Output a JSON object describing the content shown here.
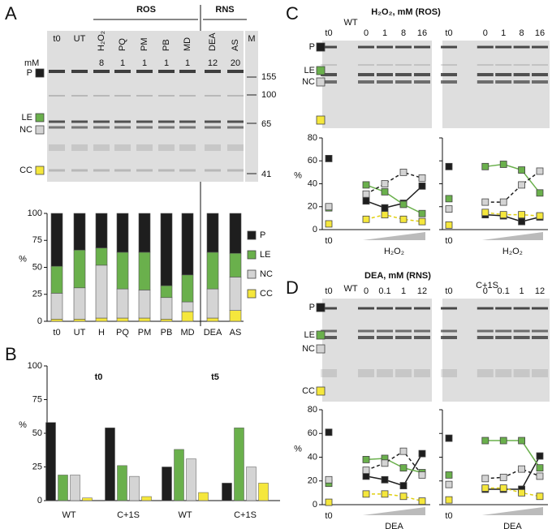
{
  "panels": [
    "A",
    "B",
    "C",
    "D"
  ],
  "gel_a": {
    "groups": [
      "ROS",
      "RNS"
    ],
    "lanes": [
      "t0",
      "UT",
      "H₂O₂",
      "PQ",
      "PM",
      "PB",
      "MD",
      "DEA",
      "AS",
      "M"
    ],
    "unit": "mM",
    "doses": [
      8,
      1,
      1,
      1,
      1,
      12,
      20
    ],
    "markers": [
      155,
      100,
      65,
      41
    ]
  },
  "chart_data": [
    {
      "type": "stacked_bar",
      "categories": [
        "t0",
        "UT",
        "H",
        "PQ",
        "PM",
        "PB",
        "MD",
        "DEA",
        "AS"
      ],
      "y_label": "%",
      "ylim": [
        0,
        100
      ],
      "yticks": [
        0,
        25,
        50,
        75,
        100
      ],
      "legend": "right",
      "series": [
        {
          "name": "P",
          "color": "#1e1e1e",
          "values": [
            49,
            34,
            32,
            36,
            36,
            67,
            57,
            36,
            37
          ]
        },
        {
          "name": "LE",
          "color": "#6ab04c",
          "values": [
            25,
            35,
            16,
            34,
            35,
            11,
            25,
            34,
            22
          ]
        },
        {
          "name": "NC",
          "color": "#d4d4d4",
          "values": [
            24,
            29,
            49,
            27,
            26,
            20,
            9,
            27,
            31
          ]
        },
        {
          "name": "CC",
          "color": "#f5e73c",
          "values": [
            2,
            2,
            3,
            3,
            3,
            2,
            9,
            3,
            10
          ]
        }
      ]
    },
    {
      "type": "bar",
      "categories": [
        "WT",
        "C+1S",
        "WT",
        "C+1S"
      ],
      "group_titles": [
        "t0",
        "t5"
      ],
      "y_label": "%",
      "ylim": [
        0,
        100
      ],
      "yticks": [
        0,
        25,
        50,
        75,
        100
      ],
      "series": [
        {
          "name": "P",
          "color": "#1e1e1e",
          "values": [
            58,
            54,
            25,
            13
          ]
        },
        {
          "name": "LE",
          "color": "#6ab04c",
          "values": [
            19,
            26,
            38,
            54
          ]
        },
        {
          "name": "NC",
          "color": "#d4d4d4",
          "values": [
            19,
            18,
            31,
            25
          ]
        },
        {
          "name": "CC",
          "color": "#f5e73c",
          "values": [
            2,
            3,
            6,
            13
          ]
        }
      ]
    },
    {
      "type": "line",
      "title": "H₂O₂, mM (ROS)",
      "subtitle": "WT",
      "categories": [
        "t0",
        null,
        "0",
        "1",
        "8",
        "16"
      ],
      "x_label": "H₂O₂",
      "y_label": "%",
      "ylim": [
        0,
        80
      ],
      "yticks": [
        0,
        20,
        40,
        60,
        80
      ],
      "series": [
        {
          "name": "P",
          "color": "#1e1e1e",
          "values": [
            62,
            null,
            25,
            19,
            23,
            38
          ]
        },
        {
          "name": "LE",
          "color": "#6ab04c",
          "values": [
            19,
            null,
            39,
            33,
            22,
            14
          ]
        },
        {
          "name": "NC",
          "color": "#d4d4d4",
          "line_color": "#1e1e1e",
          "dash": true,
          "values": [
            20,
            null,
            31,
            40,
            50,
            45
          ]
        },
        {
          "name": "CC",
          "color": "#f5e73c",
          "line_color": "#e0cf10",
          "dash": true,
          "values": [
            5,
            null,
            9,
            13,
            9,
            7
          ]
        }
      ]
    },
    {
      "type": "line",
      "categories": [
        "t0",
        null,
        "0",
        "1",
        "8",
        "16"
      ],
      "x_label": "H₂O₂",
      "ylim": [
        0,
        80
      ],
      "yticks": [
        0,
        20,
        40,
        60,
        80
      ],
      "tick_labels": false,
      "series": [
        {
          "name": "P",
          "color": "#1e1e1e",
          "values": [
            55,
            null,
            13,
            12,
            7,
            11
          ]
        },
        {
          "name": "LE",
          "color": "#6ab04c",
          "values": [
            27,
            null,
            55,
            57,
            52,
            32
          ]
        },
        {
          "name": "NC",
          "color": "#d4d4d4",
          "line_color": "#1e1e1e",
          "dash": true,
          "values": [
            18,
            null,
            24,
            24,
            39,
            51
          ]
        },
        {
          "name": "CC",
          "color": "#f5e73c",
          "line_color": "#e0cf10",
          "dash": true,
          "values": [
            4,
            null,
            15,
            13,
            13,
            12
          ]
        }
      ]
    },
    {
      "type": "line",
      "title": "DEA, mM (RNS)",
      "subtitle": "WT",
      "categories": [
        "t0",
        null,
        "0",
        "0.1",
        "1",
        "12"
      ],
      "x_label": "DEA",
      "y_label": "%",
      "ylim": [
        0,
        80
      ],
      "yticks": [
        0,
        20,
        40,
        60,
        80
      ],
      "series": [
        {
          "name": "P",
          "color": "#1e1e1e",
          "values": [
            61,
            null,
            24,
            21,
            16,
            43
          ]
        },
        {
          "name": "LE",
          "color": "#6ab04c",
          "values": [
            18,
            null,
            38,
            39,
            31,
            27
          ]
        },
        {
          "name": "NC",
          "color": "#d4d4d4",
          "line_color": "#1e1e1e",
          "dash": true,
          "values": [
            21,
            null,
            29,
            35,
            45,
            25
          ]
        },
        {
          "name": "CC",
          "color": "#f5e73c",
          "line_color": "#e0cf10",
          "dash": true,
          "values": [
            2,
            null,
            9,
            9,
            7,
            3
          ]
        }
      ]
    },
    {
      "type": "line",
      "subtitle": "C+1S",
      "categories": [
        "t0",
        null,
        "0",
        "0.1",
        "1",
        "12"
      ],
      "x_label": "DEA",
      "ylim": [
        0,
        80
      ],
      "yticks": [
        0,
        20,
        40,
        60,
        80
      ],
      "tick_labels": false,
      "series": [
        {
          "name": "P",
          "color": "#1e1e1e",
          "values": [
            56,
            null,
            13,
            13,
            13,
            41
          ]
        },
        {
          "name": "LE",
          "color": "#6ab04c",
          "values": [
            25,
            null,
            54,
            54,
            54,
            31
          ]
        },
        {
          "name": "NC",
          "color": "#d4d4d4",
          "line_color": "#1e1e1e",
          "dash": true,
          "values": [
            17,
            null,
            22,
            23,
            30,
            24
          ]
        },
        {
          "name": "CC",
          "color": "#f5e73c",
          "line_color": "#e0cf10",
          "dash": true,
          "values": [
            4,
            null,
            14,
            14,
            10,
            7
          ]
        }
      ]
    }
  ]
}
